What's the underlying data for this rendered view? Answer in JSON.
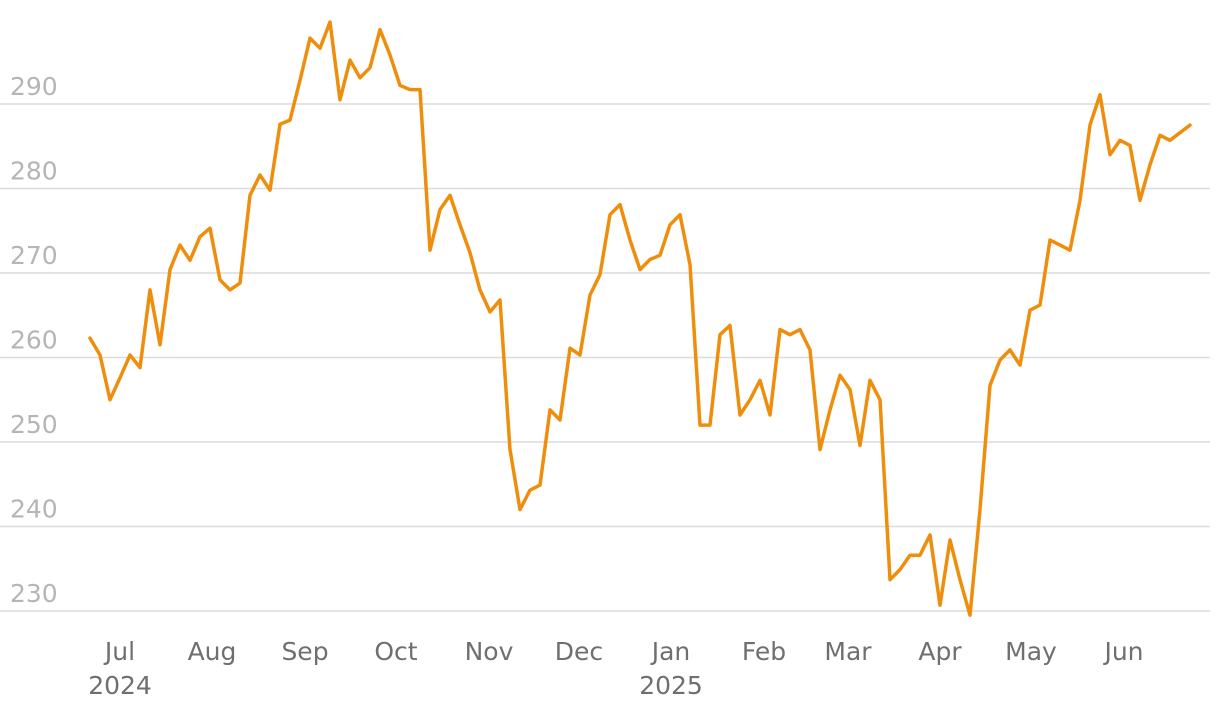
{
  "chart_data": {
    "type": "line",
    "color": "#ef8e0c",
    "grid": true,
    "values": [
      262.3,
      260.3,
      255,
      257.6,
      260.3,
      258.8,
      268,
      261.5,
      270.4,
      273.3,
      271.5,
      274.3,
      275.3,
      269.2,
      268,
      268.8,
      279.2,
      281.6,
      279.8,
      287.6,
      288.1,
      292.8,
      297.8,
      296.6,
      299.7,
      290.5,
      295.2,
      293.1,
      294.3,
      298.8,
      295.8,
      292.2,
      291.7,
      291.7,
      272.7,
      277.5,
      279.2,
      275.7,
      272.4,
      268,
      265.4,
      266.8,
      249.1,
      242,
      244.3,
      244.9,
      253.8,
      252.6,
      261.1,
      260.3,
      267.4,
      269.8,
      276.9,
      278.1,
      273.9,
      270.4,
      271.6,
      272.1,
      275.7,
      276.9,
      271,
      252,
      252,
      262.7,
      263.8,
      253.2,
      255,
      257.3,
      253.2,
      263.3,
      262.7,
      263.3,
      260.9,
      249.1,
      253.8,
      257.9,
      256.2,
      249.6,
      257.3,
      255,
      233.7,
      234.9,
      236.6,
      236.6,
      239,
      230.7,
      238.4,
      233.7,
      229.5,
      242,
      256.7,
      259.7,
      260.9,
      259.1,
      265.6,
      266.2,
      273.9,
      273.3,
      272.7,
      278.6,
      287.5,
      291.1,
      284,
      285.7,
      285.1,
      278.6,
      282.8,
      286.3,
      285.7,
      286.6,
      287.5
    ],
    "ylim": [
      228,
      300
    ],
    "yticks": [
      230,
      240,
      250,
      260,
      270,
      280,
      290
    ],
    "xticks": [
      {
        "value": 3,
        "label": "Jul",
        "sublabel": "2024"
      },
      {
        "value": 12.2,
        "label": "Aug"
      },
      {
        "value": 21.5,
        "label": "Sep"
      },
      {
        "value": 30.6,
        "label": "Oct"
      },
      {
        "value": 39.9,
        "label": "Nov"
      },
      {
        "value": 48.9,
        "label": "Dec"
      },
      {
        "value": 58.1,
        "label": "Jan",
        "sublabel": "2025"
      },
      {
        "value": 67.4,
        "label": "Feb"
      },
      {
        "value": 75.8,
        "label": "Mar"
      },
      {
        "value": 85,
        "label": "Apr"
      },
      {
        "value": 94.1,
        "label": "May"
      },
      {
        "value": 103.4,
        "label": "Jun"
      }
    ]
  }
}
